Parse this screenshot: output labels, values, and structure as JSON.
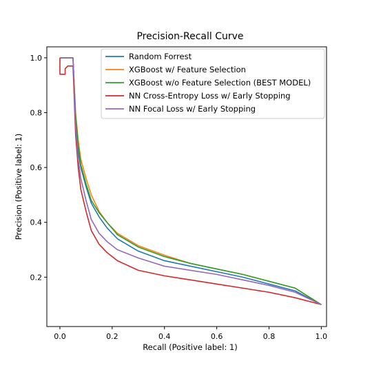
{
  "chart_data": {
    "type": "line",
    "title": "Precision-Recall Curve",
    "xlabel": "Recall (Positive label: 1)",
    "ylabel": "Precision (Positive label: 1)",
    "xlim": [
      -0.05,
      1.02
    ],
    "ylim": [
      0.02,
      1.04
    ],
    "xticks": [
      0.0,
      0.2,
      0.4,
      0.6,
      0.8,
      1.0
    ],
    "xtick_labels": [
      "0.0",
      "0.2",
      "0.4",
      "0.6",
      "0.8",
      "1.0"
    ],
    "yticks": [
      0.2,
      0.4,
      0.6,
      0.8,
      1.0
    ],
    "ytick_labels": [
      "0.2",
      "0.4",
      "0.6",
      "0.8",
      "1.0"
    ],
    "grid": false,
    "legend_position": "top-right",
    "series": [
      {
        "name": "Random Forrest",
        "color": "#1f77b4",
        "points": [
          [
            0.0,
            1.0
          ],
          [
            0.05,
            1.0
          ],
          [
            0.06,
            0.78
          ],
          [
            0.07,
            0.66
          ],
          [
            0.08,
            0.6
          ],
          [
            0.1,
            0.53
          ],
          [
            0.12,
            0.47
          ],
          [
            0.15,
            0.42
          ],
          [
            0.18,
            0.38
          ],
          [
            0.22,
            0.34
          ],
          [
            0.3,
            0.295
          ],
          [
            0.4,
            0.26
          ],
          [
            0.5,
            0.24
          ],
          [
            0.6,
            0.22
          ],
          [
            0.7,
            0.2
          ],
          [
            0.8,
            0.175
          ],
          [
            0.9,
            0.15
          ],
          [
            1.0,
            0.1
          ]
        ]
      },
      {
        "name": "XGBoost w/ Feature Selection",
        "color": "#ff7f0e",
        "points": [
          [
            0.0,
            1.0
          ],
          [
            0.05,
            1.0
          ],
          [
            0.06,
            0.8
          ],
          [
            0.07,
            0.7
          ],
          [
            0.08,
            0.63
          ],
          [
            0.1,
            0.56
          ],
          [
            0.12,
            0.5
          ],
          [
            0.15,
            0.44
          ],
          [
            0.18,
            0.4
          ],
          [
            0.22,
            0.36
          ],
          [
            0.3,
            0.315
          ],
          [
            0.4,
            0.28
          ],
          [
            0.5,
            0.25
          ],
          [
            0.6,
            0.23
          ],
          [
            0.7,
            0.21
          ],
          [
            0.8,
            0.185
          ],
          [
            0.9,
            0.16
          ],
          [
            1.0,
            0.1
          ]
        ]
      },
      {
        "name": "XGBoost w/o Feature Selection (BEST MODEL)",
        "color": "#2ca02c",
        "points": [
          [
            0.0,
            1.0
          ],
          [
            0.05,
            1.0
          ],
          [
            0.06,
            0.79
          ],
          [
            0.07,
            0.68
          ],
          [
            0.08,
            0.61
          ],
          [
            0.1,
            0.54
          ],
          [
            0.12,
            0.48
          ],
          [
            0.15,
            0.435
          ],
          [
            0.18,
            0.4
          ],
          [
            0.22,
            0.355
          ],
          [
            0.3,
            0.31
          ],
          [
            0.4,
            0.275
          ],
          [
            0.5,
            0.25
          ],
          [
            0.6,
            0.23
          ],
          [
            0.7,
            0.21
          ],
          [
            0.8,
            0.185
          ],
          [
            0.9,
            0.16
          ],
          [
            1.0,
            0.1
          ]
        ]
      },
      {
        "name": "NN Cross-Entropy Loss w/ Early Stopping",
        "color": "#d62728",
        "points": [
          [
            0.0,
            1.0
          ],
          [
            0.0,
            0.94
          ],
          [
            0.02,
            0.94
          ],
          [
            0.02,
            0.96
          ],
          [
            0.03,
            0.97
          ],
          [
            0.05,
            0.97
          ],
          [
            0.06,
            0.72
          ],
          [
            0.07,
            0.6
          ],
          [
            0.08,
            0.52
          ],
          [
            0.1,
            0.44
          ],
          [
            0.12,
            0.37
          ],
          [
            0.15,
            0.32
          ],
          [
            0.18,
            0.29
          ],
          [
            0.22,
            0.26
          ],
          [
            0.3,
            0.225
          ],
          [
            0.4,
            0.205
          ],
          [
            0.5,
            0.19
          ],
          [
            0.6,
            0.175
          ],
          [
            0.7,
            0.16
          ],
          [
            0.8,
            0.145
          ],
          [
            0.9,
            0.125
          ],
          [
            1.0,
            0.1
          ]
        ]
      },
      {
        "name": "NN Focal Loss w/ Early Stopping",
        "color": "#9467bd",
        "points": [
          [
            0.0,
            1.0
          ],
          [
            0.05,
            1.0
          ],
          [
            0.06,
            0.75
          ],
          [
            0.07,
            0.63
          ],
          [
            0.08,
            0.56
          ],
          [
            0.1,
            0.48
          ],
          [
            0.12,
            0.41
          ],
          [
            0.15,
            0.36
          ],
          [
            0.18,
            0.33
          ],
          [
            0.22,
            0.3
          ],
          [
            0.3,
            0.27
          ],
          [
            0.4,
            0.24
          ],
          [
            0.5,
            0.225
          ],
          [
            0.6,
            0.21
          ],
          [
            0.7,
            0.19
          ],
          [
            0.8,
            0.17
          ],
          [
            0.9,
            0.145
          ],
          [
            1.0,
            0.1
          ]
        ]
      }
    ]
  }
}
